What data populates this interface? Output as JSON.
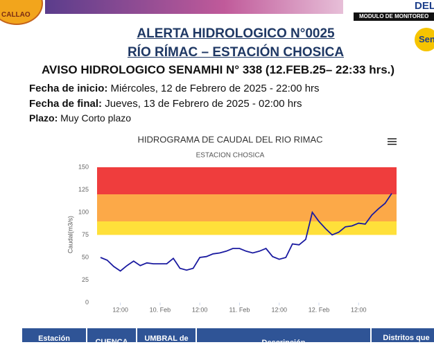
{
  "header": {
    "logo_left": "CALLAO",
    "logo_right_top": "DEL",
    "module": "MODULO DE MONITOREO",
    "logo_right": "Sen"
  },
  "title": {
    "line1": "ALERTA HIDROLOGICO N°0025",
    "line2": "RÍO RÍMAC – ESTACIÓN CHOSICA"
  },
  "notice": "AVISO HIDROLOGICO SENAMHI N° 338 (12.FEB.25– 22:33 hrs.)",
  "details": [
    {
      "label": "Fecha de inicio:",
      "value": "Miércoles, 12 de Febrero de 2025 - 22:00 hrs"
    },
    {
      "label": "Fecha de final:",
      "value": "Jueves, 13 de Febrero de 2025 - 02:00 hrs"
    },
    {
      "label": "Plazo:",
      "value": "Muy Corto plazo"
    }
  ],
  "chart_data": {
    "type": "line",
    "title": "HIDROGRAMA DE CAUDAL DEL RIO RIMAC",
    "subtitle": "ESTACION CHOSICA",
    "y_label": "Caudal(m3/s)",
    "series": [
      {
        "name": "Caudal",
        "color": "#1a1aa0",
        "values": [
          50,
          47,
          40,
          35,
          41,
          46,
          41,
          44,
          43,
          43,
          43,
          49,
          38,
          36,
          38,
          50,
          51,
          54,
          55,
          57,
          60,
          60,
          57,
          55,
          57,
          60,
          51,
          48,
          50,
          65,
          64,
          70,
          100,
          90,
          82,
          75,
          78,
          84,
          85,
          88,
          87,
          97,
          104,
          110,
          121
        ]
      }
    ],
    "xlim": [
      0,
      44
    ],
    "xticks": [
      {
        "value": 3,
        "label": "12:00"
      },
      {
        "value": 9,
        "label": "10. Feb"
      },
      {
        "value": 15,
        "label": "12:00"
      },
      {
        "value": 21,
        "label": "11. Feb"
      },
      {
        "value": 27,
        "label": "12:00"
      },
      {
        "value": 33,
        "label": "12. Feb"
      },
      {
        "value": 39,
        "label": "12:00"
      }
    ],
    "ylim": [
      0,
      150
    ],
    "yticks": [
      0,
      25,
      50,
      75,
      100,
      125,
      150
    ],
    "bands": [
      {
        "from": 120,
        "to": 150,
        "color": "#ef3d3d"
      },
      {
        "from": 90,
        "to": 120,
        "color": "#fca948"
      },
      {
        "from": 75,
        "to": 90,
        "color": "#ffe03a"
      }
    ],
    "grid": false
  },
  "table": {
    "header": [
      "Estación",
      "CUENCA",
      "UMBRAL de",
      "Descripción",
      "Distritos que"
    ]
  }
}
